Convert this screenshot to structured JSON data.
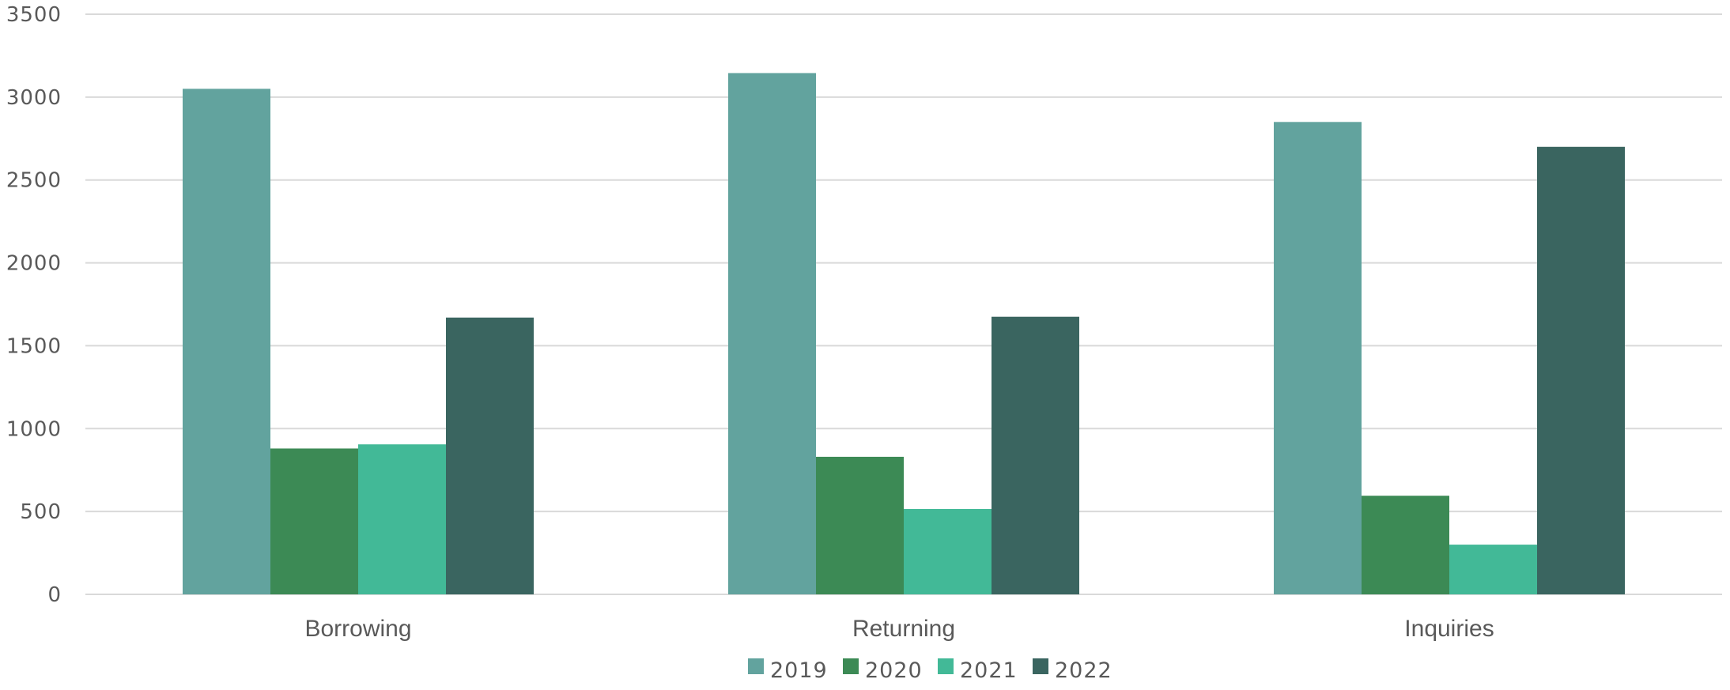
{
  "chart_data": {
    "type": "bar",
    "categories": [
      "Borrowing",
      "Returning",
      "Inquiries"
    ],
    "series": [
      {
        "name": "2019",
        "values": [
          3050,
          3145,
          2850
        ],
        "color": "#62a39e"
      },
      {
        "name": "2020",
        "values": [
          880,
          830,
          595
        ],
        "color": "#3c8a55"
      },
      {
        "name": "2021",
        "values": [
          905,
          515,
          300
        ],
        "color": "#42b997"
      },
      {
        "name": "2022",
        "values": [
          1670,
          1675,
          2700
        ],
        "color": "#3a6560"
      }
    ],
    "ylim": [
      0,
      3500
    ],
    "yticks": [
      0,
      500,
      1000,
      1500,
      2000,
      2500,
      3000,
      3500
    ],
    "grid": true,
    "legend_position": "bottom",
    "title": "",
    "xlabel": "",
    "ylabel": ""
  }
}
